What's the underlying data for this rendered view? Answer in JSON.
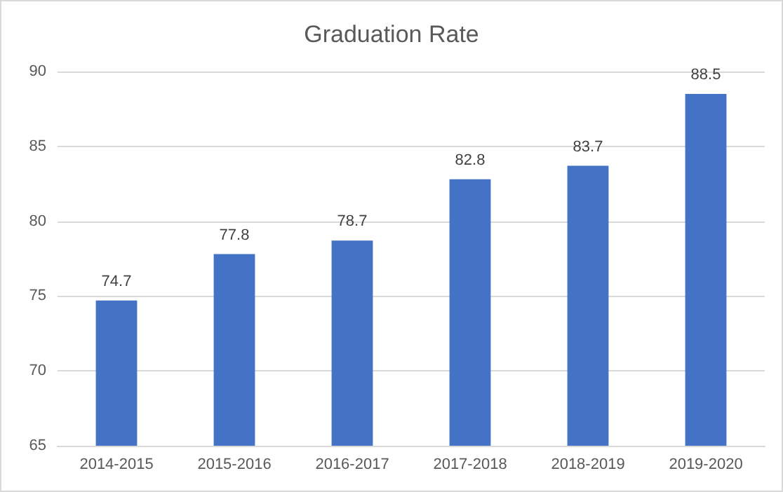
{
  "chart_data": {
    "type": "bar",
    "title": "Graduation Rate",
    "categories": [
      "2014-2015",
      "2015-2016",
      "2016-2017",
      "2017-2018",
      "2018-2019",
      "2019-2020"
    ],
    "values": [
      74.7,
      77.8,
      78.7,
      82.8,
      83.7,
      88.5
    ],
    "color": "#4472c4",
    "ylim": [
      65,
      90
    ],
    "yticks": [
      65,
      70,
      75,
      80,
      85,
      90
    ],
    "grid": "y",
    "data_labels": true
  }
}
